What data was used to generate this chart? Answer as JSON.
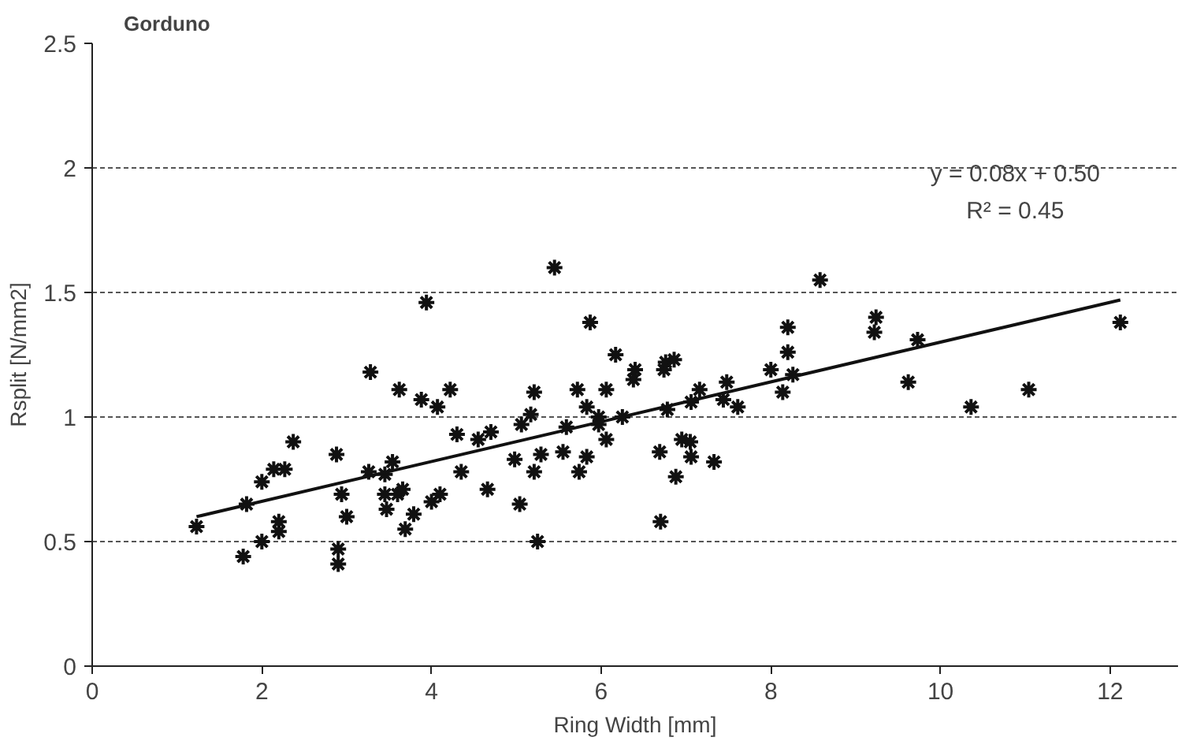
{
  "chart_data": {
    "type": "scatter",
    "title": "Gorduno",
    "xlabel": "Ring Width [mm]",
    "ylabel": "Rsplit [N/mm2]",
    "annotations": [
      "y = 0.08x + 0.50",
      "R² = 0.45"
    ],
    "xlim": [
      0,
      12.8
    ],
    "ylim": [
      0,
      2.5
    ],
    "xticks": [
      0,
      2,
      4,
      6,
      8,
      10,
      12
    ],
    "yticks": [
      0,
      0.5,
      1,
      1.5,
      2,
      2.5
    ],
    "grid": "y",
    "marker": "cross",
    "series": [
      {
        "color": "#111111",
        "x": [
          1.23,
          1.78,
          1.82,
          2.0,
          2.0,
          2.14,
          2.27,
          2.2,
          2.2,
          2.37,
          2.88,
          2.94,
          3.0,
          2.9,
          2.9,
          3.28,
          3.26,
          3.45,
          3.54,
          3.45,
          3.47,
          3.6,
          3.66,
          3.69,
          3.79,
          3.62,
          3.88,
          3.94,
          4.07,
          4.22,
          4.0,
          4.1,
          4.3,
          4.35,
          4.55,
          4.7,
          4.66,
          5.04,
          4.98,
          5.06,
          5.17,
          5.21,
          5.21,
          5.29,
          5.25,
          5.45,
          5.55,
          5.59,
          5.72,
          5.74,
          5.83,
          5.83,
          5.87,
          5.97,
          5.97,
          6.06,
          6.06,
          6.17,
          6.25,
          6.38,
          6.4,
          6.69,
          6.7,
          6.74,
          6.76,
          6.86,
          6.78,
          6.88,
          6.95,
          7.05,
          7.06,
          7.16,
          7.06,
          7.33,
          7.48,
          7.44,
          7.61,
          8.0,
          8.2,
          8.2,
          8.14,
          8.26,
          8.58,
          9.24,
          9.22,
          9.73,
          9.62,
          10.36,
          11.04,
          12.12
        ],
        "values": [
          0.56,
          0.44,
          0.65,
          0.5,
          0.74,
          0.79,
          0.79,
          0.58,
          0.54,
          0.9,
          0.85,
          0.69,
          0.6,
          0.47,
          0.41,
          1.18,
          0.78,
          0.77,
          0.82,
          0.69,
          0.63,
          0.69,
          0.71,
          0.55,
          0.61,
          1.11,
          1.07,
          1.46,
          1.04,
          1.11,
          0.66,
          0.69,
          0.93,
          0.78,
          0.91,
          0.94,
          0.71,
          0.65,
          0.83,
          0.97,
          1.01,
          1.1,
          0.78,
          0.85,
          0.5,
          1.6,
          0.86,
          0.96,
          1.11,
          0.78,
          0.84,
          1.04,
          1.38,
          1.0,
          0.97,
          1.11,
          0.91,
          1.25,
          1.0,
          1.15,
          1.19,
          0.86,
          0.58,
          1.19,
          1.22,
          1.23,
          1.03,
          0.76,
          0.91,
          0.9,
          0.84,
          1.11,
          1.06,
          0.82,
          1.14,
          1.07,
          1.04,
          1.19,
          1.36,
          1.26,
          1.1,
          1.17,
          1.55,
          1.4,
          1.34,
          1.31,
          1.14,
          1.04,
          1.11,
          1.38
        ]
      },
      {
        "type": "line",
        "marker": "none",
        "color": "#111111",
        "x": [
          1.23,
          12.12
        ],
        "values": [
          0.6,
          1.47
        ]
      }
    ]
  }
}
